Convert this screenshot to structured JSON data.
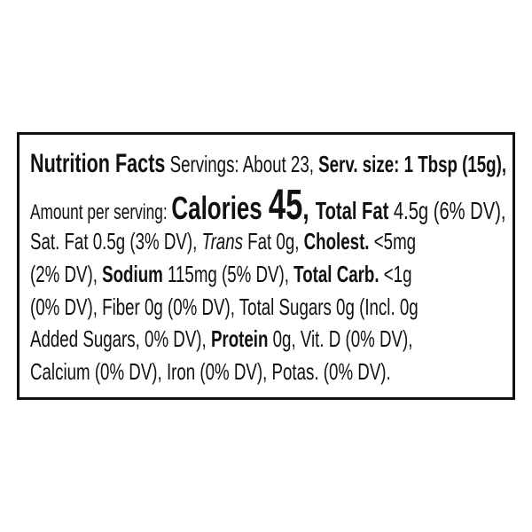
{
  "label": {
    "title": "Nutrition Facts",
    "servings": " Servings: About 23, ",
    "serv_size": "Serv. size: 1 Tbsp (15g),",
    "amount_per_serving": "Amount per serving: ",
    "calories_label": "Calories ",
    "calories_value": "45",
    "comma": ", ",
    "total_fat_label": "Total Fat",
    "total_fat_value": " 4.5g (6% DV),",
    "sat_fat": "Sat. Fat 0.5g (3% DV), ",
    "trans_label": "Trans",
    "trans_value": " Fat 0g, ",
    "cholest_label": "Cholest.",
    "cholest_value": " <5mg",
    "cholest_dv": "(2% DV), ",
    "sodium_label": "Sodium",
    "sodium_value": " 115mg (5% DV), ",
    "carb_label": "Total Carb.",
    "carb_value": " <1g",
    "line5": "(0% DV), Fiber 0g (0% DV), Total Sugars 0g (Incl. 0g",
    "added_sugars": "Added Sugars, 0% DV), ",
    "protein_label": "Protein",
    "protein_value": " 0g, Vit. D (0% DV),",
    "line7": "Calcium (0% DV), Iron (0% DV), Potas. (0% DV)."
  }
}
